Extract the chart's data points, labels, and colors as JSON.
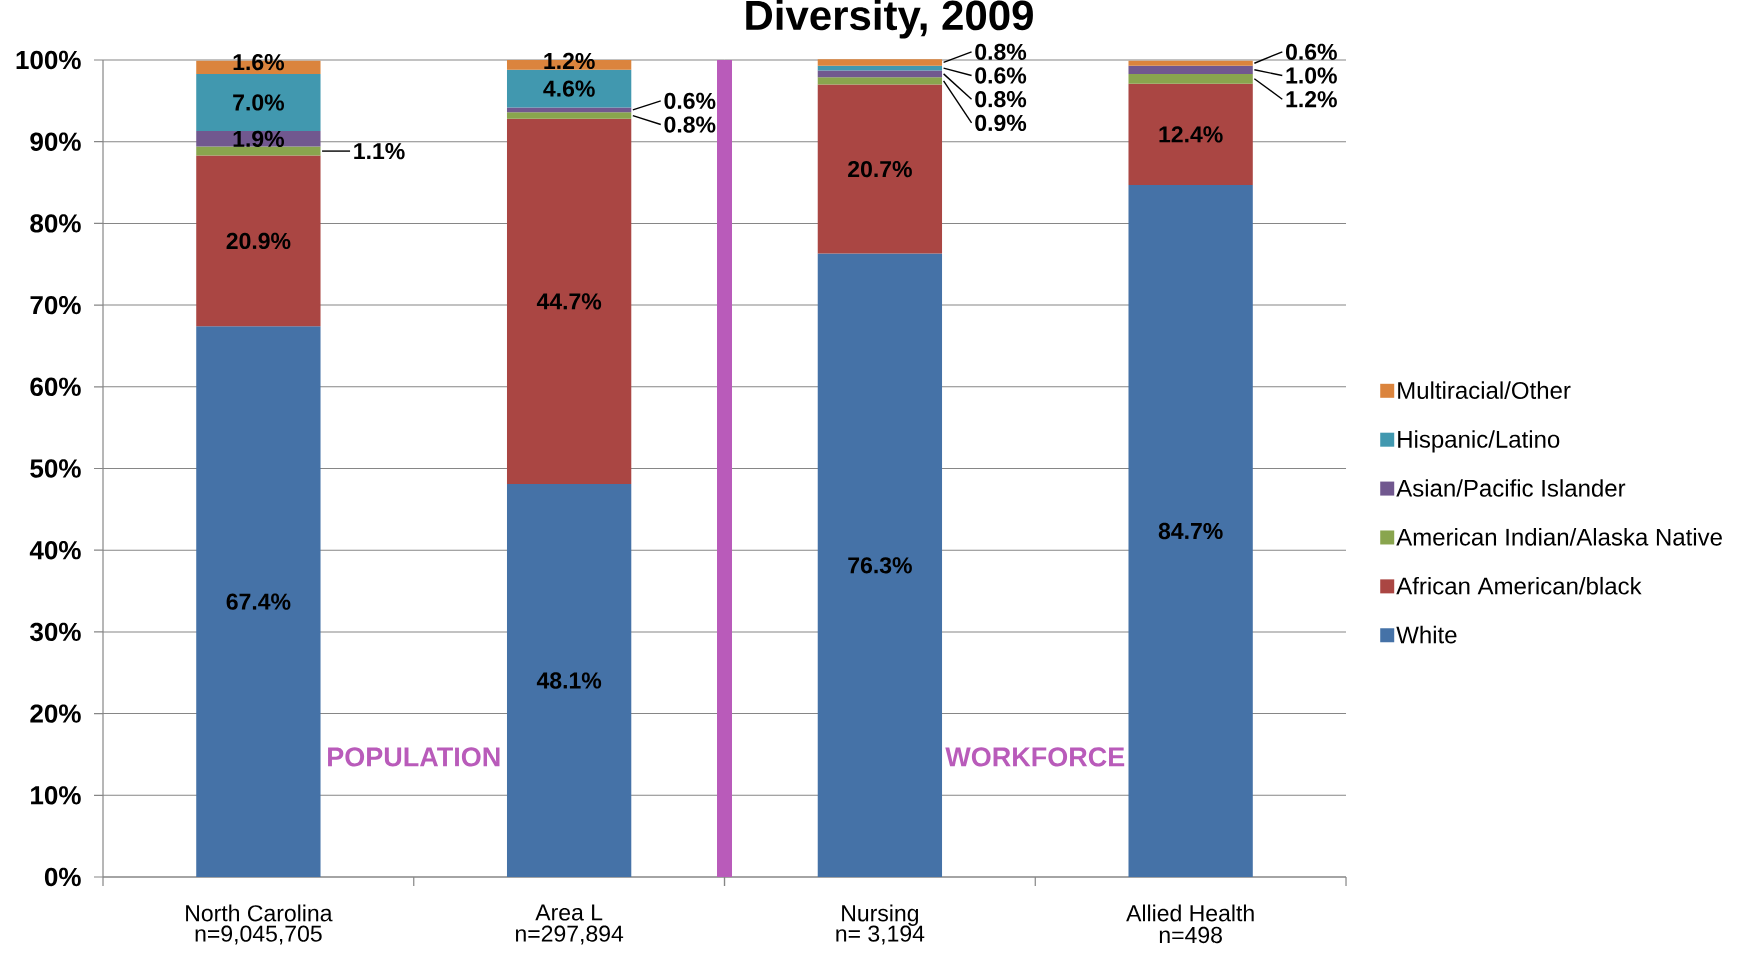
{
  "chart_data": [
    {
      "type": "bar",
      "stacked": true,
      "categories": [
        "North Carolina",
        "Area L"
      ],
      "series": [
        {
          "color": "#4572a7",
          "values": [
            67.4,
            48.1
          ],
          "value_labels": [
            "67.4%",
            "48.1%"
          ]
        },
        {
          "color": "#aa4643",
          "values": [
            20.9,
            44.7
          ],
          "value_labels": [
            "20.9%",
            "44.7%"
          ]
        },
        {
          "color": "#89a54e",
          "values": [
            1.1,
            0.8
          ],
          "value_labels": [
            "1.1%",
            "0.8%"
          ]
        },
        {
          "color": "#71588f",
          "values": [
            1.9,
            0.6
          ],
          "value_labels": [
            "1.9%",
            "0.6%"
          ]
        },
        {
          "color": "#4198af",
          "values": [
            7.0,
            4.6
          ],
          "value_labels": [
            "7.0%",
            "4.6%"
          ]
        },
        {
          "color": "#db843d",
          "values": [
            1.6,
            1.2
          ],
          "value_labels": [
            "1.6%",
            "1.2%"
          ]
        }
      ],
      "ylim": [
        0,
        100
      ],
      "yticks": [
        {
          "value": 0,
          "label": "0%"
        },
        {
          "value": 10,
          "label": "10%"
        },
        {
          "value": 20,
          "label": "20%"
        },
        {
          "value": 30,
          "label": "30%"
        },
        {
          "value": 40,
          "label": "40%"
        },
        {
          "value": 50,
          "label": "50%"
        },
        {
          "value": 60,
          "label": "60%"
        },
        {
          "value": 70,
          "label": "70%"
        },
        {
          "value": 80,
          "label": "80%"
        },
        {
          "value": 90,
          "label": "90%"
        },
        {
          "value": 100,
          "label": "100%"
        }
      ],
      "grid": "y",
      "annotations": [
        "n=9,045,705",
        "n=297,894",
        "POPULATION"
      ]
    },
    {
      "type": "bar",
      "title": "Diversity, 2009",
      "stacked": true,
      "categories": [
        "Nursing",
        "Allied Health"
      ],
      "series": [
        {
          "name": "White",
          "color": "#4572a7",
          "values": [
            76.3,
            84.7
          ],
          "value_labels": [
            "76.3%",
            "84.7%"
          ]
        },
        {
          "name": "African American/black",
          "color": "#aa4643",
          "values": [
            20.7,
            12.4
          ],
          "value_labels": [
            "20.7%",
            "12.4%"
          ]
        },
        {
          "name": "American Indian/Alaska Native",
          "color": "#89a54e",
          "values": [
            0.9,
            1.2
          ],
          "value_labels": [
            "0.9%",
            "1.2%"
          ]
        },
        {
          "name": "Asian/Pacific Islander",
          "color": "#71588f",
          "values": [
            0.8,
            1.0
          ],
          "value_labels": [
            "0.8%",
            "1.0%"
          ]
        },
        {
          "name": "Hispanic/Latino",
          "color": "#4198af",
          "values": [
            0.6,
            null
          ],
          "value_labels": [
            "0.6%",
            null
          ]
        },
        {
          "name": "Multiracial/Other",
          "color": "#db843d",
          "values": [
            0.8,
            0.6
          ],
          "value_labels": [
            "0.8%",
            "0.6%"
          ]
        }
      ],
      "ylim": [
        0,
        100
      ],
      "yticks": [
        0,
        10,
        20,
        30,
        40,
        50,
        60,
        70,
        80,
        90,
        100
      ],
      "tick_labels": "x",
      "grid": "y",
      "legend": "right",
      "annotations": [
        "n= 3,194",
        "n=498",
        "WORKFORCE"
      ]
    }
  ]
}
